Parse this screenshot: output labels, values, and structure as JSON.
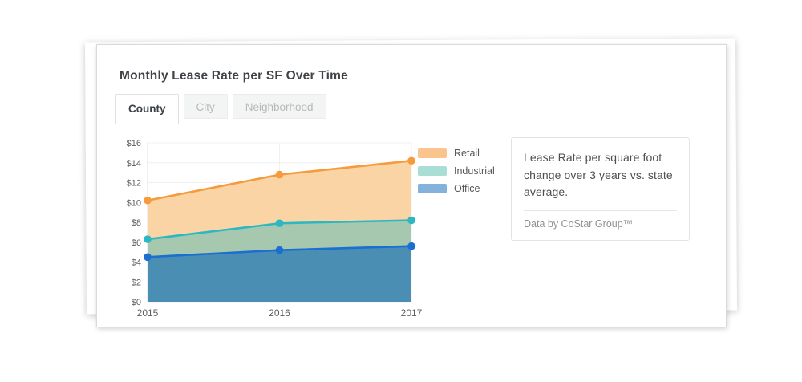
{
  "card": {
    "title": "Monthly Lease Rate per SF Over Time"
  },
  "tabs": {
    "items": [
      {
        "label": "County",
        "active": true
      },
      {
        "label": "City",
        "active": false
      },
      {
        "label": "Neighborhood",
        "active": false
      }
    ]
  },
  "chart_data": {
    "type": "area",
    "title": "Monthly Lease Rate per SF Over Time",
    "x_categories": [
      "2015",
      "2016",
      "2017"
    ],
    "series": [
      {
        "name": "Retail",
        "values": [
          10.2,
          12.8,
          14.2
        ],
        "line_color": "#F59B3C",
        "band_fill": "#FBD4A6",
        "legend_color": "#FAC48F"
      },
      {
        "name": "Industrial",
        "values": [
          6.3,
          7.9,
          8.2
        ],
        "line_color": "#2CB7C4",
        "band_fill": "#A5C8AE",
        "legend_color": "#A8DED6"
      },
      {
        "name": "Office",
        "values": [
          4.5,
          5.2,
          5.6
        ],
        "line_color": "#1B6FD0",
        "band_fill": "#4A8EB3",
        "legend_color": "#85B2DC"
      }
    ],
    "ylabel": "",
    "xlabel": "",
    "ylim": [
      0,
      16
    ],
    "ytick_step": 2,
    "ytick_prefix": "$",
    "grid": true,
    "legend_position": "right",
    "notes": "Each area fills from its line down to the series below; Office fills to $0."
  },
  "info_box": {
    "text": "Lease Rate per square foot change over 3 years vs. state average.",
    "source": "Data by CoStar Group™"
  },
  "colors": {
    "grid": "#f0f0f2",
    "axis_line": "#dcdfe1",
    "axis_text": "#5b5f64",
    "title_text": "#3f4347",
    "card_border": "#d9d9d9",
    "tab_inactive_bg": "#f3f4f4",
    "tab_inactive_text": "#b6b9bc",
    "info_border": "#e3e3e3",
    "info_text": "#4b4f54",
    "info_source_text": "#8d9195"
  }
}
